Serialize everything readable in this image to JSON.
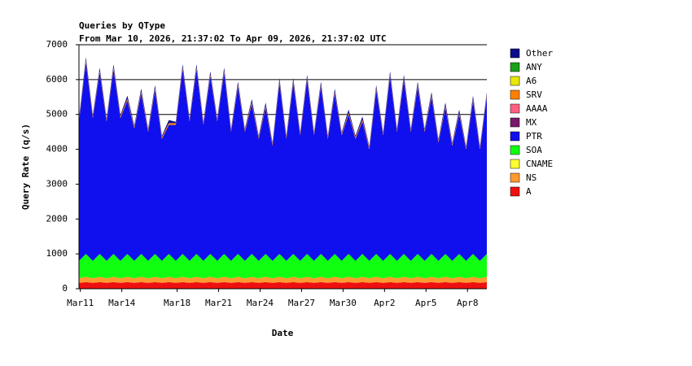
{
  "chart_data": {
    "type": "stacked-area",
    "title": "Queries by QType",
    "subtitle": "From Mar 10, 2026, 21:37:02 To Apr 09, 2026, 21:37:02 UTC",
    "x_label": "Date",
    "y_label": "Query Rate (q/s)",
    "x": [
      0.9,
      1.4,
      1.9,
      2.4,
      2.9,
      3.4,
      3.9,
      4.4,
      4.9,
      5.4,
      5.9,
      6.4,
      6.9,
      7.4,
      7.9,
      8.4,
      8.9,
      9.4,
      9.9,
      10.4,
      10.9,
      11.4,
      11.9,
      12.4,
      12.9,
      13.4,
      13.9,
      14.4,
      14.9,
      15.4,
      15.9,
      16.4,
      16.9,
      17.4,
      17.9,
      18.4,
      18.9,
      19.4,
      19.9,
      20.4,
      20.9,
      21.4,
      21.9,
      22.4,
      22.9,
      23.4,
      23.9,
      24.4,
      24.9,
      25.4,
      25.9,
      26.4,
      26.9,
      27.4,
      27.9,
      28.4,
      28.9,
      29.4,
      29.9,
      30.4
    ],
    "xlim": [
      0.9,
      30.4
    ],
    "xticks": [
      {
        "value": 1,
        "label": "Mar11"
      },
      {
        "value": 4,
        "label": "Mar14"
      },
      {
        "value": 8,
        "label": "Mar18"
      },
      {
        "value": 11,
        "label": "Mar21"
      },
      {
        "value": 14,
        "label": "Mar24"
      },
      {
        "value": 17,
        "label": "Mar27"
      },
      {
        "value": 20,
        "label": "Mar30"
      },
      {
        "value": 23,
        "label": "Apr2"
      },
      {
        "value": 26,
        "label": "Apr5"
      },
      {
        "value": 29,
        "label": "Apr8"
      }
    ],
    "ylim": [
      0,
      7000
    ],
    "yticks": [
      0,
      1000,
      2000,
      3000,
      4000,
      5000,
      6000,
      7000
    ],
    "grid": true,
    "legend": "right",
    "series": [
      {
        "name": "A",
        "color": "#ee1010",
        "values": [
          170,
          190,
          170,
          190,
          170,
          190,
          170,
          190,
          170,
          190,
          170,
          190,
          170,
          190,
          170,
          190,
          170,
          190,
          170,
          190,
          170,
          190,
          170,
          190,
          170,
          190,
          170,
          190,
          170,
          190,
          170,
          190,
          170,
          190,
          170,
          190,
          170,
          190,
          170,
          190,
          170,
          190,
          170,
          190,
          170,
          190,
          170,
          190,
          170,
          190,
          170,
          190,
          170,
          190,
          170,
          190,
          170,
          190,
          170,
          190
        ]
      },
      {
        "name": "NS",
        "color": "#ff9a30",
        "values": [
          130,
          150,
          130,
          150,
          130,
          150,
          130,
          150,
          130,
          150,
          130,
          150,
          130,
          150,
          130,
          150,
          130,
          150,
          130,
          150,
          130,
          150,
          130,
          150,
          130,
          150,
          130,
          150,
          130,
          150,
          130,
          150,
          130,
          150,
          130,
          150,
          130,
          150,
          130,
          150,
          130,
          150,
          130,
          150,
          130,
          150,
          130,
          150,
          130,
          150,
          130,
          150,
          130,
          150,
          130,
          150,
          130,
          150,
          130,
          150
        ]
      },
      {
        "name": "CNAME",
        "color": "#ffff30",
        "values": [
          0,
          0,
          0,
          0,
          0,
          0,
          0,
          0,
          0,
          0,
          0,
          0,
          0,
          0,
          0,
          0,
          0,
          0,
          0,
          0,
          0,
          0,
          0,
          0,
          0,
          0,
          0,
          0,
          0,
          0,
          0,
          0,
          0,
          0,
          0,
          0,
          0,
          0,
          0,
          0,
          0,
          0,
          0,
          0,
          0,
          0,
          0,
          0,
          0,
          0,
          0,
          0,
          0,
          0,
          0,
          0,
          0,
          0,
          0,
          0
        ]
      },
      {
        "name": "SOA",
        "color": "#10ff10",
        "values": [
          500,
          660,
          500,
          660,
          500,
          660,
          500,
          660,
          500,
          660,
          500,
          660,
          500,
          660,
          500,
          660,
          500,
          660,
          500,
          660,
          500,
          660,
          500,
          660,
          500,
          660,
          500,
          660,
          500,
          660,
          500,
          660,
          500,
          660,
          500,
          660,
          500,
          660,
          500,
          660,
          500,
          660,
          500,
          660,
          500,
          660,
          500,
          660,
          500,
          660,
          500,
          660,
          500,
          660,
          500,
          660,
          500,
          660,
          500,
          660
        ]
      },
      {
        "name": "PTR",
        "color": "#1010ee",
        "values": [
          4000,
          5500,
          4100,
          5200,
          4000,
          5300,
          4100,
          4400,
          3800,
          4600,
          3700,
          4700,
          3500,
          3700,
          3900,
          5300,
          4000,
          5300,
          3900,
          5100,
          4000,
          5200,
          3700,
          4800,
          3700,
          4300,
          3500,
          4200,
          3300,
          4900,
          3500,
          4900,
          3600,
          5000,
          3600,
          4800,
          3500,
          4600,
          3600,
          4000,
          3500,
          3800,
          3200,
          4700,
          3600,
          5100,
          3700,
          5000,
          3700,
          4800,
          3700,
          4500,
          3400,
          4200,
          3300,
          4000,
          3200,
          4400,
          3200,
          4500
        ]
      },
      {
        "name": "MX",
        "color": "#7a1a6a",
        "values": [
          0,
          0,
          0,
          0,
          0,
          0,
          0,
          0,
          0,
          0,
          0,
          0,
          0,
          0,
          0,
          0,
          0,
          0,
          0,
          0,
          0,
          0,
          0,
          0,
          0,
          0,
          0,
          0,
          0,
          0,
          0,
          0,
          0,
          0,
          0,
          0,
          0,
          0,
          0,
          0,
          0,
          0,
          0,
          0,
          0,
          0,
          0,
          0,
          0,
          0,
          0,
          0,
          0,
          0,
          0,
          0,
          0,
          0,
          0,
          0
        ]
      },
      {
        "name": "AAAA",
        "color": "#ff6080",
        "values": [
          0,
          0,
          0,
          0,
          0,
          0,
          0,
          0,
          0,
          0,
          0,
          0,
          0,
          0,
          0,
          0,
          0,
          0,
          0,
          0,
          0,
          0,
          0,
          0,
          0,
          0,
          0,
          0,
          0,
          0,
          0,
          0,
          0,
          0,
          0,
          0,
          0,
          0,
          0,
          0,
          0,
          0,
          0,
          0,
          0,
          0,
          0,
          0,
          0,
          0,
          0,
          0,
          0,
          0,
          0,
          0,
          0,
          0,
          0,
          0
        ]
      },
      {
        "name": "SRV",
        "color": "#ff8000",
        "values": [
          50,
          50,
          50,
          50,
          50,
          50,
          50,
          50,
          50,
          50,
          50,
          50,
          50,
          50,
          50,
          50,
          50,
          50,
          50,
          50,
          50,
          50,
          50,
          50,
          50,
          50,
          50,
          50,
          50,
          50,
          50,
          50,
          50,
          50,
          50,
          50,
          50,
          50,
          50,
          50,
          50,
          50,
          50,
          50,
          50,
          50,
          50,
          50,
          50,
          50,
          50,
          50,
          50,
          50,
          50,
          50,
          50,
          50,
          50,
          50
        ]
      },
      {
        "name": "A6",
        "color": "#e8e800",
        "values": [
          0,
          0,
          0,
          0,
          0,
          0,
          0,
          0,
          0,
          0,
          0,
          0,
          0,
          0,
          0,
          0,
          0,
          0,
          0,
          0,
          0,
          0,
          0,
          0,
          0,
          0,
          0,
          0,
          0,
          0,
          0,
          0,
          0,
          0,
          0,
          0,
          0,
          0,
          0,
          0,
          0,
          0,
          0,
          0,
          0,
          0,
          0,
          0,
          0,
          0,
          0,
          0,
          0,
          0,
          0,
          0,
          0,
          0,
          0,
          0
        ]
      },
      {
        "name": "ANY",
        "color": "#1aa01a",
        "values": [
          0,
          0,
          0,
          0,
          0,
          0,
          0,
          0,
          0,
          0,
          0,
          0,
          0,
          0,
          0,
          0,
          0,
          0,
          0,
          0,
          0,
          0,
          0,
          0,
          0,
          0,
          0,
          0,
          0,
          0,
          0,
          0,
          0,
          0,
          0,
          0,
          0,
          0,
          0,
          0,
          0,
          0,
          0,
          0,
          0,
          0,
          0,
          0,
          0,
          0,
          0,
          0,
          0,
          0,
          0,
          0,
          0,
          0,
          0,
          0
        ]
      },
      {
        "name": "Other",
        "color": "#0c0c8a",
        "values": [
          40,
          90,
          40,
          90,
          40,
          90,
          40,
          90,
          40,
          90,
          40,
          90,
          40,
          90,
          40,
          90,
          40,
          90,
          40,
          90,
          40,
          90,
          40,
          90,
          40,
          90,
          40,
          90,
          40,
          90,
          40,
          90,
          40,
          90,
          40,
          90,
          40,
          90,
          40,
          90,
          40,
          90,
          40,
          90,
          40,
          90,
          40,
          90,
          40,
          90,
          40,
          90,
          40,
          90,
          40,
          90,
          40,
          90,
          40,
          90
        ]
      }
    ]
  }
}
